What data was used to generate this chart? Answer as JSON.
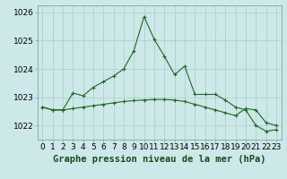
{
  "line1_x": [
    0,
    1,
    2,
    3,
    4,
    5,
    6,
    7,
    8,
    9,
    10,
    11,
    12,
    13,
    14,
    15,
    16,
    17,
    18,
    19,
    20,
    21,
    22,
    23
  ],
  "line1_y": [
    1022.65,
    1022.55,
    1022.55,
    1023.15,
    1023.05,
    1023.35,
    1023.55,
    1023.75,
    1024.0,
    1024.65,
    1025.85,
    1025.05,
    1024.45,
    1023.8,
    1024.1,
    1023.1,
    1023.1,
    1023.1,
    1022.9,
    1022.65,
    1022.55,
    1022.0,
    1021.8,
    1021.85
  ],
  "line2_x": [
    0,
    1,
    2,
    3,
    4,
    5,
    6,
    7,
    8,
    9,
    10,
    11,
    12,
    13,
    14,
    15,
    16,
    17,
    18,
    19,
    20,
    21,
    22,
    23
  ],
  "line2_y": [
    1022.65,
    1022.55,
    1022.55,
    1022.6,
    1022.65,
    1022.7,
    1022.75,
    1022.8,
    1022.85,
    1022.88,
    1022.9,
    1022.92,
    1022.92,
    1022.9,
    1022.85,
    1022.75,
    1022.65,
    1022.55,
    1022.45,
    1022.35,
    1022.6,
    1022.55,
    1022.1,
    1022.0
  ],
  "line_color": "#1a6b1a",
  "bg_color": "#cde8e8",
  "grid_color": "#a8cccc",
  "title": "Graphe pression niveau de la mer (hPa)",
  "ylim": [
    1021.5,
    1026.25
  ],
  "yticks": [
    1022,
    1023,
    1024,
    1025,
    1026
  ],
  "xticks": [
    0,
    1,
    2,
    3,
    4,
    5,
    6,
    7,
    8,
    9,
    10,
    11,
    12,
    13,
    14,
    15,
    16,
    17,
    18,
    19,
    20,
    21,
    22,
    23
  ],
  "tick_fontsize": 6.5,
  "title_fontsize": 7.5
}
